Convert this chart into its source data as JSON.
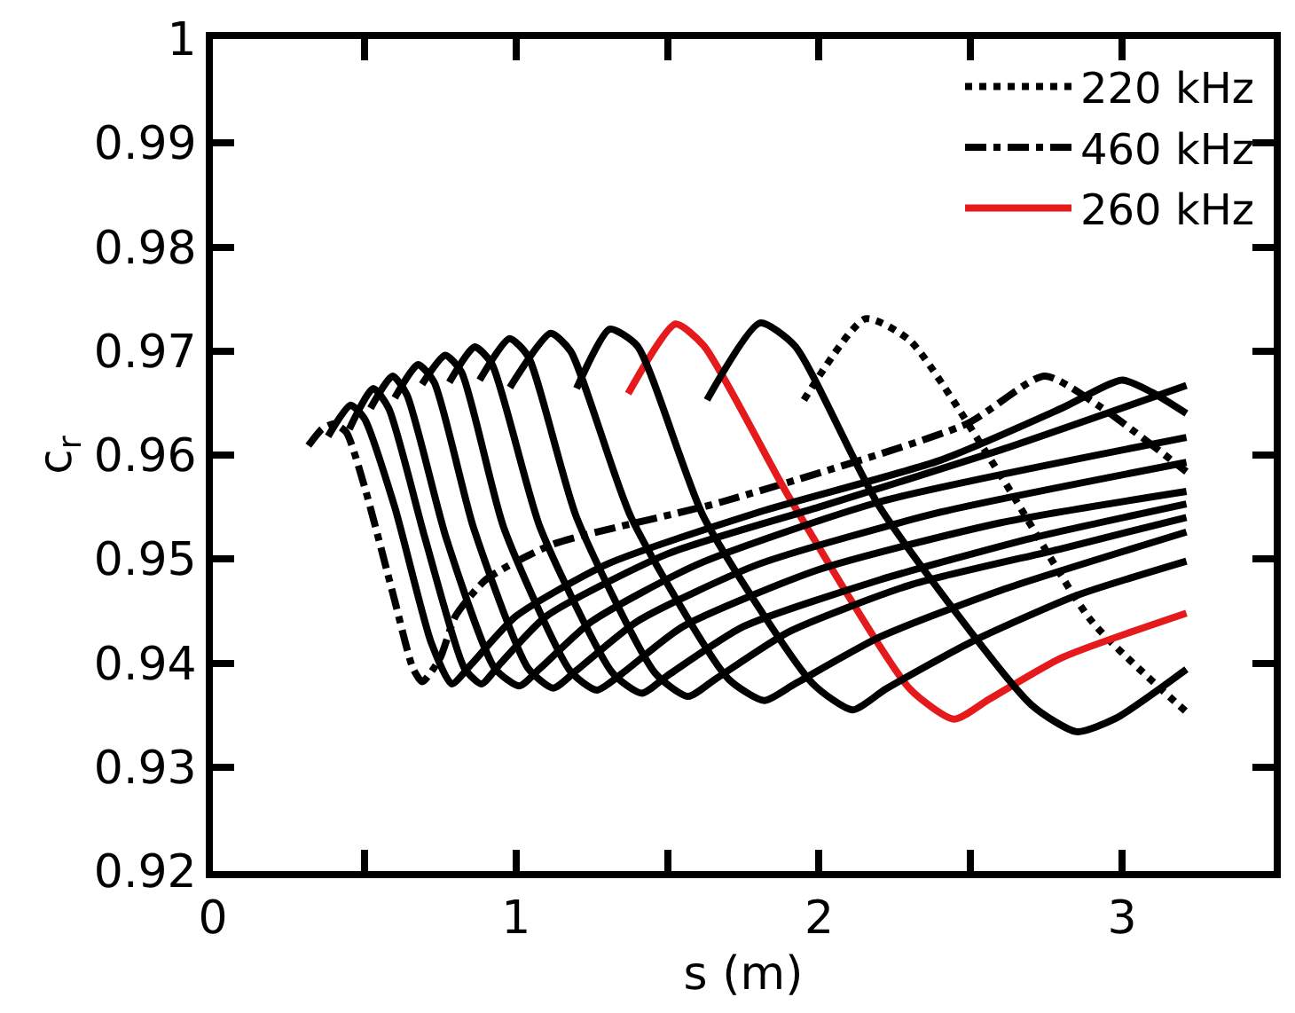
{
  "chart_data": {
    "type": "line",
    "xlabel": "s (m)",
    "ylabel": "c$_{r}$",
    "xlim": [
      0,
      3.5
    ],
    "ylim": [
      0.92,
      1
    ],
    "xticks": [
      0,
      {
        "value": 0.5,
        "label": null
      },
      1,
      {
        "value": 1.5,
        "label": null
      },
      2,
      {
        "value": 2.5,
        "label": null
      },
      3
    ],
    "yticks": [
      0.92,
      0.93,
      0.94,
      0.95,
      0.96,
      0.97,
      0.98,
      0.99,
      1
    ],
    "legend": "top right",
    "marker": "none",
    "series": [
      {
        "name": "220 kHz",
        "color": "#000000",
        "line_style": "dotted",
        "x": [
          1.95,
          2.153,
          2.3,
          2.6,
          2.9,
          3.212
        ],
        "values": [
          0.9653,
          0.9731,
          0.971,
          0.958,
          0.944,
          0.9353
        ]
      },
      {
        "name": "460 kHz",
        "color": "#000000",
        "line_style": "dashed",
        "x": [
          0.315,
          0.36,
          0.4,
          0.44,
          0.5,
          0.6,
          0.66,
          0.691,
          0.75,
          0.8,
          0.9,
          1.12,
          1.68,
          2.487,
          2.744,
          2.93,
          3.212
        ],
        "values": [
          0.9609,
          0.9625,
          0.963,
          0.9622,
          0.957,
          0.946,
          0.9395,
          0.9382,
          0.9405,
          0.9445,
          0.948,
          0.9514,
          0.9555,
          0.963,
          0.9676,
          0.9646,
          0.9584
        ]
      },
      {
        "name": "260 kHz",
        "color": "#e41a1c",
        "line_style": "solid",
        "x": [
          1.37,
          1.526,
          1.62,
          1.9,
          2.3,
          2.446,
          2.56,
          2.8,
          3.212
        ],
        "values": [
          0.9659,
          0.9726,
          0.9705,
          0.956,
          0.9375,
          0.9346,
          0.9365,
          0.9405,
          0.9448
        ]
      },
      {
        "color": "#000000",
        "line_style": "solid",
        "x": [
          0.38,
          0.454,
          0.5,
          0.6,
          0.72,
          0.788,
          0.85,
          1.0,
          1.3,
          1.8,
          2.4,
          2.8,
          3.0,
          3.1,
          3.212
        ],
        "values": [
          0.9618,
          0.9648,
          0.9635,
          0.955,
          0.942,
          0.938,
          0.9398,
          0.9445,
          0.9495,
          0.9545,
          0.9595,
          0.9645,
          0.9672,
          0.966,
          0.964
        ]
      },
      {
        "color": "#000000",
        "line_style": "solid",
        "x": [
          0.45,
          0.529,
          0.58,
          0.7,
          0.83,
          0.886,
          0.95,
          1.1,
          1.5,
          2.0,
          2.6,
          3.212
        ],
        "values": [
          0.9625,
          0.9664,
          0.9645,
          0.952,
          0.9395,
          0.938,
          0.94,
          0.9445,
          0.9505,
          0.955,
          0.9605,
          0.9667
        ]
      },
      {
        "color": "#000000",
        "line_style": "solid",
        "x": [
          0.52,
          0.593,
          0.64,
          0.77,
          0.93,
          1.011,
          1.08,
          1.25,
          1.6,
          2.2,
          3.212
        ],
        "values": [
          0.9645,
          0.9676,
          0.9658,
          0.952,
          0.9395,
          0.9378,
          0.9395,
          0.944,
          0.9495,
          0.9555,
          0.9617
        ]
      },
      {
        "color": "#000000",
        "line_style": "solid",
        "x": [
          0.6,
          0.677,
          0.73,
          0.86,
          1.04,
          1.123,
          1.2,
          1.4,
          1.8,
          2.4,
          3.212
        ],
        "values": [
          0.9655,
          0.9687,
          0.967,
          0.953,
          0.9395,
          0.9376,
          0.9393,
          0.944,
          0.9495,
          0.9545,
          0.9593
        ]
      },
      {
        "color": "#000000",
        "line_style": "solid",
        "x": [
          0.69,
          0.766,
          0.82,
          0.96,
          1.18,
          1.267,
          1.35,
          1.55,
          2.0,
          2.6,
          3.212
        ],
        "values": [
          0.9668,
          0.9696,
          0.968,
          0.953,
          0.9392,
          0.9374,
          0.939,
          0.9435,
          0.949,
          0.9535,
          0.9565
        ]
      },
      {
        "color": "#000000",
        "line_style": "solid",
        "x": [
          0.78,
          0.864,
          0.92,
          1.08,
          1.32,
          1.415,
          1.5,
          1.75,
          2.2,
          2.7,
          3.212
        ],
        "values": [
          0.967,
          0.9704,
          0.9688,
          0.953,
          0.939,
          0.9371,
          0.9388,
          0.9435,
          0.948,
          0.952,
          0.9553
        ]
      },
      {
        "color": "#000000",
        "line_style": "solid",
        "x": [
          0.88,
          0.978,
          1.04,
          1.2,
          1.46,
          1.568,
          1.66,
          1.9,
          2.3,
          2.8,
          3.212
        ],
        "values": [
          0.9672,
          0.9712,
          0.9695,
          0.954,
          0.939,
          0.9368,
          0.9385,
          0.943,
          0.9475,
          0.951,
          0.954
        ]
      },
      {
        "color": "#000000",
        "line_style": "solid",
        "x": [
          0.98,
          1.114,
          1.18,
          1.38,
          1.7,
          1.819,
          1.92,
          2.2,
          2.6,
          3.212
        ],
        "values": [
          0.9665,
          0.9717,
          0.97,
          0.954,
          0.9385,
          0.9364,
          0.938,
          0.9425,
          0.947,
          0.9526
        ]
      },
      {
        "color": "#000000",
        "line_style": "solid",
        "x": [
          1.2,
          1.309,
          1.4,
          1.62,
          1.98,
          2.111,
          2.22,
          2.5,
          2.85,
          3.212
        ],
        "values": [
          0.9664,
          0.9721,
          0.9705,
          0.954,
          0.938,
          0.9355,
          0.9375,
          0.942,
          0.9465,
          0.9498
        ]
      },
      {
        "color": "#000000",
        "line_style": "solid",
        "x": [
          1.63,
          1.805,
          1.92,
          2.2,
          2.7,
          2.85,
          2.98,
          3.212
        ],
        "values": [
          0.9653,
          0.9727,
          0.9705,
          0.955,
          0.936,
          0.9334,
          0.9347,
          0.9394
        ]
      }
    ]
  }
}
